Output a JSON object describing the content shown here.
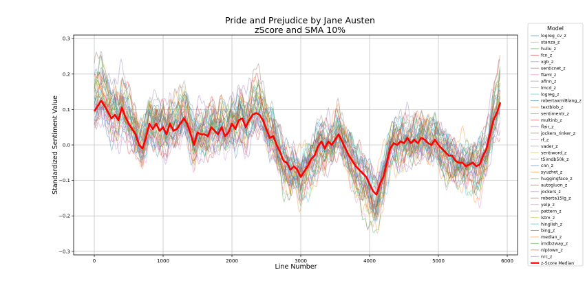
{
  "chart_data": {
    "type": "line",
    "title": "Pride and Prejudice by Jane Austen",
    "subtitle": "zScore and SMA 10%",
    "xlabel": "Line Number",
    "ylabel": "Standardized Sentiment Value",
    "xlim": [
      -300,
      6150
    ],
    "ylim": [
      -0.31,
      0.31
    ],
    "xticks": [
      0,
      1000,
      2000,
      3000,
      4000,
      5000,
      6000
    ],
    "xtick_labels": [
      "0",
      "1000",
      "2000",
      "3000",
      "4000",
      "5000",
      "6000"
    ],
    "yticks": [
      -0.3,
      -0.2,
      -0.1,
      0.0,
      0.1,
      0.2,
      0.3
    ],
    "ytick_labels": [
      "−0.3",
      "−0.2",
      "−0.1",
      "0.0",
      "0.1",
      "0.2",
      "0.3"
    ],
    "grid": true,
    "legend_title": "Model",
    "legend_position": "right-outside",
    "series": [
      {
        "name": "logreg_cv_z",
        "color": "#1f77b4",
        "offset": 0.02,
        "phase": 0.3
      },
      {
        "name": "stanza_z",
        "color": "#ff7f0e",
        "offset": -0.03,
        "phase": 1.1
      },
      {
        "name": "huliu_z",
        "color": "#2ca02c",
        "offset": 0.01,
        "phase": 2.2
      },
      {
        "name": "fcn_z",
        "color": "#d62728",
        "offset": -0.01,
        "phase": 0.7
      },
      {
        "name": "xgb_z",
        "color": "#9467bd",
        "offset": 0.03,
        "phase": 1.9
      },
      {
        "name": "senticnet_z",
        "color": "#8c564b",
        "offset": 0.0,
        "phase": 2.8
      },
      {
        "name": "flaml_z",
        "color": "#e377c2",
        "offset": -0.02,
        "phase": 0.4
      },
      {
        "name": "afinn_z",
        "color": "#7f7f7f",
        "offset": 0.02,
        "phase": 3.3
      },
      {
        "name": "lmcd_z",
        "color": "#bcbd22",
        "offset": -0.01,
        "phase": 1.5
      },
      {
        "name": "logreg_z",
        "color": "#17becf",
        "offset": 0.01,
        "phase": 2.5
      },
      {
        "name": "robertaxml8lang_z",
        "color": "#1f77b4",
        "offset": -0.02,
        "phase": 0.9
      },
      {
        "name": "textblob_z",
        "color": "#ff7f0e",
        "offset": 0.04,
        "phase": 3.8
      },
      {
        "name": "sentimentr_z",
        "color": "#2ca02c",
        "offset": 0.0,
        "phase": 1.2
      },
      {
        "name": "multinb_z",
        "color": "#d62728",
        "offset": 0.02,
        "phase": 2.1
      },
      {
        "name": "flair_z",
        "color": "#9467bd",
        "offset": -0.03,
        "phase": 0.2
      },
      {
        "name": "jockers_rinker_z",
        "color": "#8c564b",
        "offset": 0.01,
        "phase": 3.0
      },
      {
        "name": "rf_z",
        "color": "#e377c2",
        "offset": -0.01,
        "phase": 1.7
      },
      {
        "name": "vader_z",
        "color": "#7f7f7f",
        "offset": 0.03,
        "phase": 2.6
      },
      {
        "name": "sentiword_z",
        "color": "#bcbd22",
        "offset": -0.02,
        "phase": 0.6
      },
      {
        "name": "t5imdb50k_z",
        "color": "#17becf",
        "offset": 0.0,
        "phase": 3.5
      },
      {
        "name": "cnn_z",
        "color": "#1f77b4",
        "offset": 0.01,
        "phase": 1.4
      },
      {
        "name": "syuzhet_z",
        "color": "#ff7f0e",
        "offset": -0.01,
        "phase": 2.3
      },
      {
        "name": "huggingface_z",
        "color": "#2ca02c",
        "offset": 0.02,
        "phase": 0.1
      },
      {
        "name": "autogluon_z",
        "color": "#d62728",
        "offset": -0.02,
        "phase": 2.9
      },
      {
        "name": "jockers_z",
        "color": "#9467bd",
        "offset": 0.0,
        "phase": 1.0
      },
      {
        "name": "roberta15lg_z",
        "color": "#8c564b",
        "offset": 0.03,
        "phase": 3.7
      },
      {
        "name": "yelp_z",
        "color": "#e377c2",
        "offset": -0.03,
        "phase": 0.8
      },
      {
        "name": "pattern_z",
        "color": "#7f7f7f",
        "offset": 0.01,
        "phase": 2.0
      },
      {
        "name": "lstm_z",
        "color": "#bcbd22",
        "offset": 0.0,
        "phase": 3.1
      },
      {
        "name": "hinglish_z",
        "color": "#17becf",
        "offset": -0.01,
        "phase": 1.6
      },
      {
        "name": "bing_z",
        "color": "#1f77b4",
        "offset": 0.02,
        "phase": 2.7
      },
      {
        "name": "median_z",
        "color": "#ff7f0e",
        "offset": 0.0,
        "phase": 0.5
      },
      {
        "name": "imdb2way_z",
        "color": "#2ca02c",
        "offset": -0.02,
        "phase": 3.4
      },
      {
        "name": "nlptown_z",
        "color": "#d62728",
        "offset": 0.01,
        "phase": 1.3
      },
      {
        "name": "nrc_z",
        "color": "#9467bd",
        "offset": -0.01,
        "phase": 2.4
      },
      {
        "name": "z-Score Median",
        "color": "#ff0000",
        "median": true
      }
    ],
    "median_x": [
      0,
      100,
      150,
      250,
      300,
      350,
      400,
      450,
      500,
      600,
      650,
      700,
      750,
      800,
      850,
      900,
      950,
      1000,
      1050,
      1100,
      1150,
      1200,
      1250,
      1300,
      1350,
      1400,
      1450,
      1500,
      1550,
      1600,
      1650,
      1700,
      1750,
      1800,
      1850,
      1900,
      1950,
      2000,
      2050,
      2100,
      2150,
      2200,
      2250,
      2300,
      2350,
      2400,
      2450,
      2500,
      2550,
      2600,
      2650,
      2700,
      2750,
      2800,
      2850,
      2900,
      2950,
      3000,
      3050,
      3100,
      3150,
      3200,
      3250,
      3300,
      3350,
      3400,
      3450,
      3500,
      3550,
      3600,
      3650,
      3700,
      3750,
      3800,
      3850,
      3900,
      3950,
      4000,
      4050,
      4100,
      4150,
      4200,
      4250,
      4300,
      4350,
      4400,
      4450,
      4500,
      4550,
      4600,
      4650,
      4700,
      4750,
      4800,
      4850,
      4900,
      4950,
      5000,
      5050,
      5100,
      5150,
      5200,
      5250,
      5300,
      5350,
      5400,
      5450,
      5500,
      5550,
      5600,
      5650,
      5700,
      5750,
      5800,
      5850,
      5900
    ],
    "median_y": [
      0.095,
      0.125,
      0.11,
      0.075,
      0.085,
      0.07,
      0.105,
      0.08,
      0.06,
      0.03,
      0.0,
      -0.01,
      0.02,
      0.06,
      0.045,
      0.06,
      0.04,
      0.05,
      0.03,
      0.06,
      0.04,
      0.045,
      0.06,
      0.075,
      0.06,
      0.03,
      0.0,
      0.035,
      0.03,
      0.03,
      0.025,
      0.05,
      0.04,
      0.03,
      0.05,
      0.025,
      0.035,
      0.06,
      0.045,
      0.07,
      0.075,
      0.05,
      0.07,
      0.085,
      0.09,
      0.085,
      0.07,
      0.045,
      0.02,
      0.025,
      0.0,
      -0.02,
      -0.045,
      -0.05,
      -0.07,
      -0.06,
      -0.07,
      -0.09,
      -0.075,
      -0.06,
      -0.04,
      -0.03,
      -0.005,
      0.01,
      -0.01,
      0.01,
      0.0,
      0.015,
      0.03,
      0.01,
      -0.01,
      -0.03,
      -0.045,
      -0.06,
      -0.07,
      -0.08,
      -0.09,
      -0.11,
      -0.13,
      -0.14,
      -0.11,
      -0.09,
      -0.05,
      -0.01,
      0.005,
      0.0,
      0.01,
      0.005,
      0.02,
      0.005,
      0.015,
      0.005,
      0.02,
      0.015,
      0.005,
      0.0,
      0.015,
      0.0,
      -0.01,
      -0.02,
      -0.03,
      -0.03,
      -0.045,
      -0.05,
      -0.05,
      -0.06,
      -0.055,
      -0.05,
      -0.06,
      -0.055,
      -0.03,
      -0.01,
      0.03,
      0.07,
      0.09,
      0.12
    ]
  }
}
